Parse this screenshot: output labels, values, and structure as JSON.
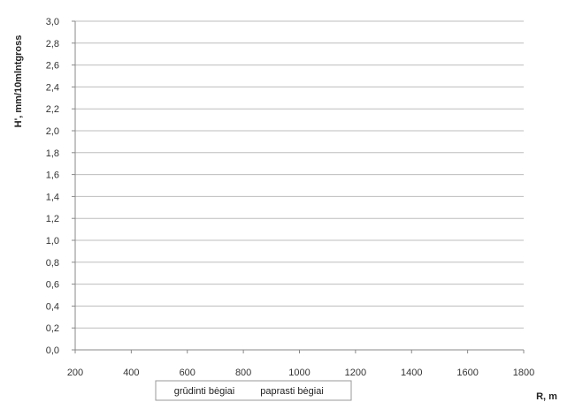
{
  "chart_data": {
    "type": "line",
    "title": "",
    "xlabel": "R, m",
    "ylabel": "H', mm/10mlntgross",
    "xlim": [
      200,
      1800
    ],
    "ylim": [
      0.0,
      3.0
    ],
    "x_ticks": [
      "200",
      "400",
      "600",
      "800",
      "1000",
      "1200",
      "1400",
      "1600",
      "1800"
    ],
    "y_ticks": [
      "0,0",
      "0,2",
      "0,4",
      "0,6",
      "0,8",
      "1,0",
      "1,2",
      "1,4",
      "1,6",
      "1,8",
      "2,0",
      "2,2",
      "2,4",
      "2,6",
      "2,8",
      "3,0"
    ],
    "grid": true,
    "legend_position": "bottom",
    "series": [
      {
        "name": "grūdinti bėgiai",
        "color": "#ffffff"
      },
      {
        "name": "paprasti bėgiai",
        "color": "#ffffff"
      }
    ]
  }
}
